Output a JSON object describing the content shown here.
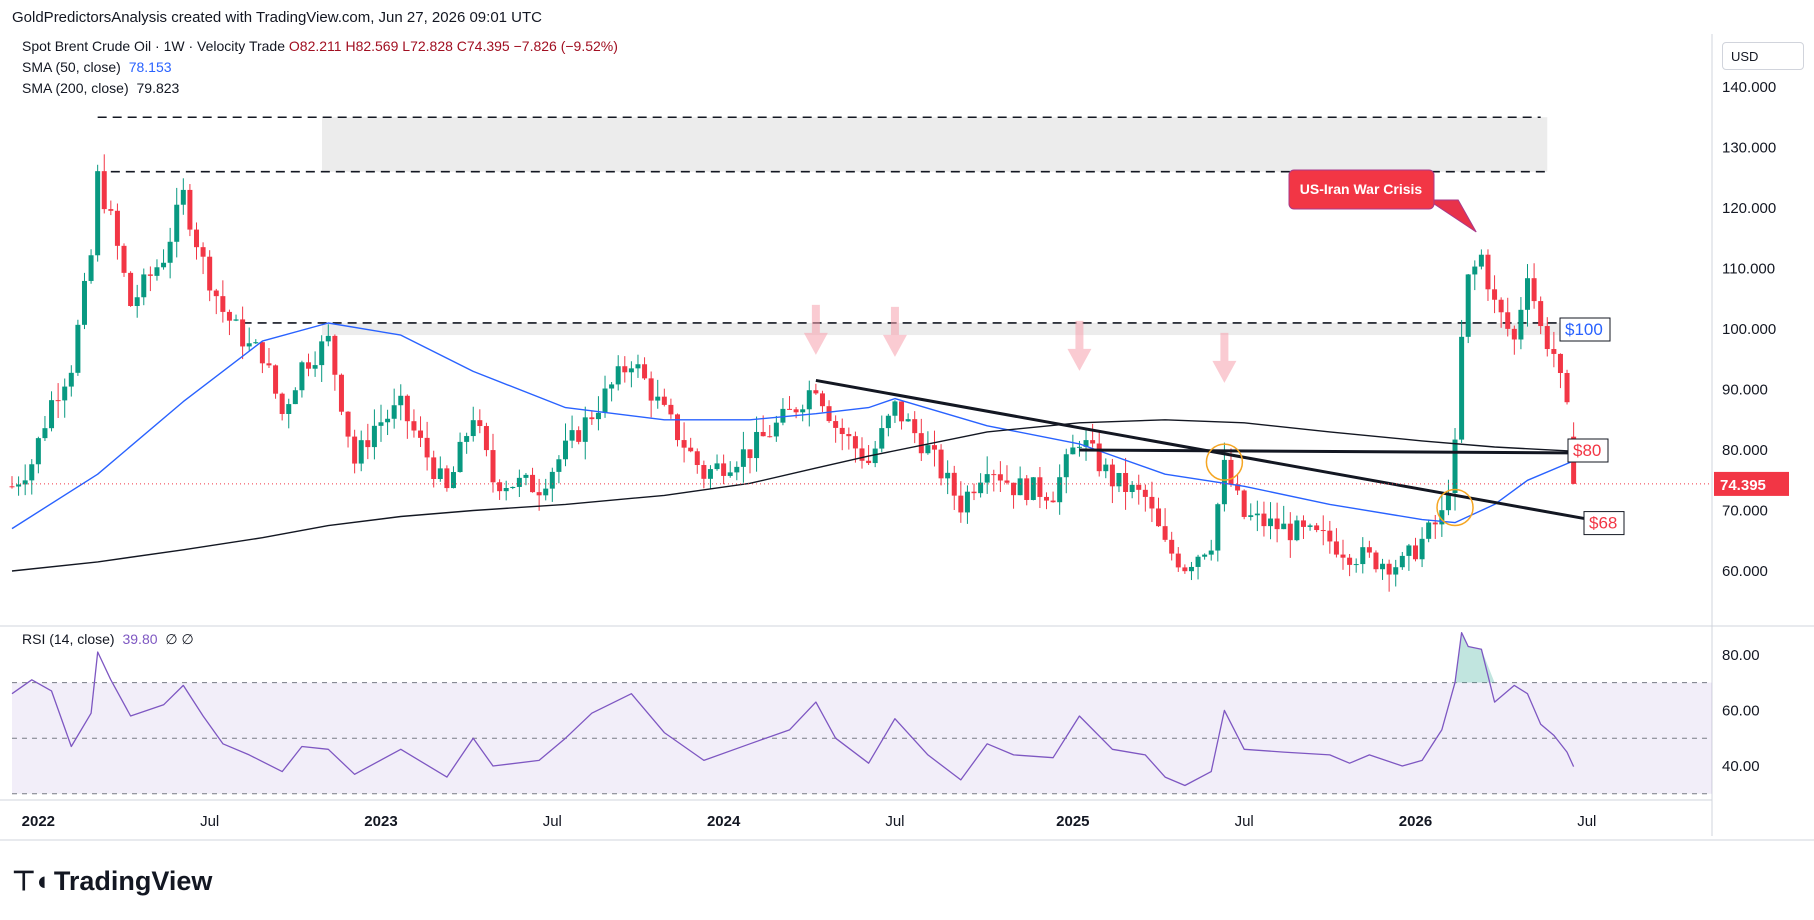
{
  "header": "GoldPredictorsAnalysis created with TradingView.com, Jun 27, 2026 09:01 UTC",
  "legend": {
    "symbol": "Spot Brent Crude Oil · 1W · Velocity Trade",
    "open": "O82.211",
    "high": "H82.569",
    "low": "L72.828",
    "close": "C74.395",
    "change": "−7.826 (−9.52%)",
    "sma50_label": "SMA (50, close)",
    "sma50_value": "78.153",
    "sma200_label": "SMA (200, close)",
    "sma200_value": "79.823",
    "rsi_label": "RSI (14, close)",
    "rsi_value": "39.80",
    "rsi_extra": "∅  ∅"
  },
  "currency_button": "USD",
  "footer": "TradingView",
  "colors": {
    "up": "#089981",
    "down": "#f23645",
    "sma50": "#2962ff",
    "sma200": "#131722",
    "rsi": "#7e57c2",
    "price_tag": "#f23645"
  },
  "chart_data": [
    {
      "type": "candlestick",
      "title": "Spot Brent Crude Oil · 1W",
      "ylim": [
        50,
        145
      ],
      "y_ticks": [
        "60.000",
        "70.000",
        "80.000",
        "90.000",
        "100.000",
        "110.000",
        "120.000",
        "130.000",
        "140.000"
      ],
      "x_ticks": [
        "2022",
        "Jul",
        "2023",
        "Jul",
        "2024",
        "Jul",
        "2025",
        "Jul",
        "2026",
        "Jul"
      ],
      "price_path": [
        [
          "2021-12-06",
          74
        ],
        [
          "2021-12-27",
          78
        ],
        [
          "2022-01-17",
          88
        ],
        [
          "2022-02-07",
          94
        ],
        [
          "2022-02-28",
          112
        ],
        [
          "2022-03-07",
          125
        ],
        [
          "2022-03-21",
          118
        ],
        [
          "2022-04-11",
          104
        ],
        [
          "2022-05-16",
          112
        ],
        [
          "2022-06-06",
          122
        ],
        [
          "2022-06-27",
          111
        ],
        [
          "2022-07-18",
          103
        ],
        [
          "2022-08-15",
          97
        ],
        [
          "2022-08-29",
          96
        ],
        [
          "2022-09-19",
          86
        ],
        [
          "2022-10-10",
          94
        ],
        [
          "2022-11-07",
          98
        ],
        [
          "2022-12-05",
          78
        ],
        [
          "2022-12-26",
          84
        ],
        [
          "2023-01-23",
          87
        ],
        [
          "2023-03-13",
          73
        ],
        [
          "2023-04-10",
          86
        ],
        [
          "2023-05-01",
          75
        ],
        [
          "2023-06-19",
          74
        ],
        [
          "2023-07-17",
          80
        ],
        [
          "2023-08-14",
          86
        ],
        [
          "2023-09-25",
          95
        ],
        [
          "2023-10-30",
          86
        ],
        [
          "2023-12-11",
          76
        ],
        [
          "2024-01-29",
          80
        ],
        [
          "2024-03-11",
          86
        ],
        [
          "2024-04-08",
          91
        ],
        [
          "2024-04-29",
          84
        ],
        [
          "2024-06-03",
          78
        ],
        [
          "2024-07-01",
          87
        ],
        [
          "2024-08-05",
          80
        ],
        [
          "2024-09-09",
          71
        ],
        [
          "2024-10-07",
          78
        ],
        [
          "2024-11-04",
          74
        ],
        [
          "2024-12-16",
          73
        ],
        [
          "2025-01-13",
          82
        ],
        [
          "2025-02-17",
          75
        ],
        [
          "2025-03-24",
          72
        ],
        [
          "2025-04-14",
          64
        ],
        [
          "2025-05-05",
          61
        ],
        [
          "2025-06-02",
          65
        ],
        [
          "2025-06-16",
          77
        ],
        [
          "2025-07-07",
          69
        ],
        [
          "2025-08-18",
          67
        ],
        [
          "2025-10-06",
          65
        ],
        [
          "2025-10-27",
          63
        ],
        [
          "2025-11-17",
          62
        ],
        [
          "2025-12-22",
          61
        ],
        [
          "2026-01-12",
          65
        ],
        [
          "2026-02-02",
          69
        ],
        [
          "2026-02-16",
          80
        ],
        [
          "2026-02-23",
          98
        ],
        [
          "2026-03-02",
          108
        ],
        [
          "2026-03-16",
          112
        ],
        [
          "2026-03-30",
          104
        ],
        [
          "2026-04-20",
          98
        ],
        [
          "2026-05-04",
          110
        ],
        [
          "2026-05-18",
          100
        ],
        [
          "2026-06-01",
          96
        ],
        [
          "2026-06-15",
          86
        ],
        [
          "2026-06-22",
          74.4
        ]
      ],
      "series": [
        {
          "name": "SMA (50, close)",
          "points": [
            [
              "2021-12-06",
              67
            ],
            [
              "2022-03-07",
              76
            ],
            [
              "2022-06-06",
              88
            ],
            [
              "2022-08-29",
              98
            ],
            [
              "2022-11-07",
              101
            ],
            [
              "2023-01-23",
              99
            ],
            [
              "2023-04-10",
              93
            ],
            [
              "2023-07-17",
              87
            ],
            [
              "2023-10-30",
              85
            ],
            [
              "2024-01-29",
              85
            ],
            [
              "2024-04-08",
              86
            ],
            [
              "2024-06-03",
              87
            ],
            [
              "2024-07-01",
              88.5
            ],
            [
              "2024-10-07",
              84
            ],
            [
              "2025-01-13",
              81
            ],
            [
              "2025-04-14",
              76
            ],
            [
              "2025-07-07",
              74
            ],
            [
              "2025-10-06",
              71
            ],
            [
              "2026-01-12",
              68.5
            ],
            [
              "2026-02-16",
              68
            ],
            [
              "2026-03-30",
              71
            ],
            [
              "2026-05-04",
              75
            ],
            [
              "2026-06-22",
              78.2
            ]
          ]
        },
        {
          "name": "SMA (200, close)",
          "points": [
            [
              "2021-12-06",
              60
            ],
            [
              "2022-03-07",
              61.5
            ],
            [
              "2022-06-06",
              63.5
            ],
            [
              "2022-08-29",
              65.5
            ],
            [
              "2022-11-07",
              67.5
            ],
            [
              "2023-01-23",
              69
            ],
            [
              "2023-04-10",
              70
            ],
            [
              "2023-07-17",
              71
            ],
            [
              "2023-10-30",
              72.5
            ],
            [
              "2024-01-29",
              74.5
            ],
            [
              "2024-04-08",
              77
            ],
            [
              "2024-06-03",
              79
            ],
            [
              "2024-10-07",
              83
            ],
            [
              "2025-01-13",
              84.5
            ],
            [
              "2025-04-14",
              85
            ],
            [
              "2025-07-07",
              84.5
            ],
            [
              "2025-10-06",
              83
            ],
            [
              "2026-01-12",
              81.5
            ],
            [
              "2026-03-30",
              80.5
            ],
            [
              "2026-06-22",
              79.8
            ]
          ]
        }
      ],
      "annotations": {
        "event_label": "US-Iran War Crisis",
        "level_labels": [
          {
            "text": "$100",
            "value": 100
          },
          {
            "text": "$80",
            "value": 80
          },
          {
            "text": "$68",
            "value": 68
          }
        ],
        "last_price": "74.395",
        "resistance_zones": [
          [
            126,
            135
          ],
          [
            99,
            101
          ]
        ],
        "dashed_levels": [
          135,
          126,
          101
        ],
        "down_arrow_dates": [
          "2024-04-08",
          "2024-07-01",
          "2025-01-13",
          "2025-06-16"
        ],
        "trendline": {
          "from": [
            "2024-04-08",
            91.5
          ],
          "to": [
            "2026-06-29",
            68.5
          ]
        },
        "horizontal_line": {
          "from": [
            "2025-01-13",
            80
          ],
          "to": [
            "2026-06-29",
            79.5
          ]
        },
        "circles": [
          [
            "2025-06-16",
            78
          ],
          [
            "2026-02-16",
            70.5
          ]
        ]
      }
    },
    {
      "type": "line",
      "title": "RSI (14, close)",
      "ylim": [
        25,
        92
      ],
      "y_ticks": [
        "40.00",
        "60.00",
        "80.00"
      ],
      "band": [
        30,
        70
      ],
      "series": [
        {
          "name": "RSI (14, close)",
          "points": [
            [
              "2021-12-06",
              66
            ],
            [
              "2021-12-27",
              71
            ],
            [
              "2022-01-17",
              67
            ],
            [
              "2022-02-07",
              47
            ],
            [
              "2022-02-28",
              59
            ],
            [
              "2022-03-07",
              81
            ],
            [
              "2022-03-21",
              71
            ],
            [
              "2022-04-11",
              58
            ],
            [
              "2022-05-16",
              62
            ],
            [
              "2022-06-06",
              69
            ],
            [
              "2022-06-27",
              58
            ],
            [
              "2022-07-18",
              48
            ],
            [
              "2022-08-15",
              44
            ],
            [
              "2022-09-19",
              38
            ],
            [
              "2022-10-10",
              47
            ],
            [
              "2022-11-07",
              46
            ],
            [
              "2022-12-05",
              37
            ],
            [
              "2023-01-23",
              46
            ],
            [
              "2023-03-13",
              36
            ],
            [
              "2023-04-10",
              50
            ],
            [
              "2023-05-01",
              40
            ],
            [
              "2023-06-19",
              42
            ],
            [
              "2023-07-17",
              50
            ],
            [
              "2023-08-14",
              59
            ],
            [
              "2023-09-25",
              66
            ],
            [
              "2023-10-30",
              52
            ],
            [
              "2023-12-11",
              42
            ],
            [
              "2024-01-29",
              48
            ],
            [
              "2024-03-11",
              53
            ],
            [
              "2024-04-08",
              63
            ],
            [
              "2024-04-29",
              50
            ],
            [
              "2024-06-03",
              41
            ],
            [
              "2024-07-01",
              57
            ],
            [
              "2024-08-05",
              44
            ],
            [
              "2024-09-09",
              35
            ],
            [
              "2024-10-07",
              48
            ],
            [
              "2024-11-04",
              44
            ],
            [
              "2024-12-16",
              43
            ],
            [
              "2025-01-13",
              58
            ],
            [
              "2025-02-17",
              46
            ],
            [
              "2025-03-24",
              44
            ],
            [
              "2025-04-14",
              36
            ],
            [
              "2025-05-05",
              33
            ],
            [
              "2025-06-02",
              38
            ],
            [
              "2025-06-16",
              60
            ],
            [
              "2025-07-07",
              46
            ],
            [
              "2025-08-18",
              45
            ],
            [
              "2025-10-06",
              44
            ],
            [
              "2025-10-27",
              41
            ],
            [
              "2025-11-17",
              44
            ],
            [
              "2025-12-22",
              40
            ],
            [
              "2026-01-12",
              42
            ],
            [
              "2026-02-02",
              53
            ],
            [
              "2026-02-16",
              70
            ],
            [
              "2026-02-23",
              88
            ],
            [
              "2026-03-02",
              83
            ],
            [
              "2026-03-16",
              82
            ],
            [
              "2026-03-30",
              63
            ],
            [
              "2026-04-20",
              69
            ],
            [
              "2026-05-04",
              66
            ],
            [
              "2026-05-18",
              55
            ],
            [
              "2026-06-01",
              51
            ],
            [
              "2026-06-15",
              45
            ],
            [
              "2026-06-22",
              39.8
            ]
          ]
        }
      ]
    }
  ]
}
